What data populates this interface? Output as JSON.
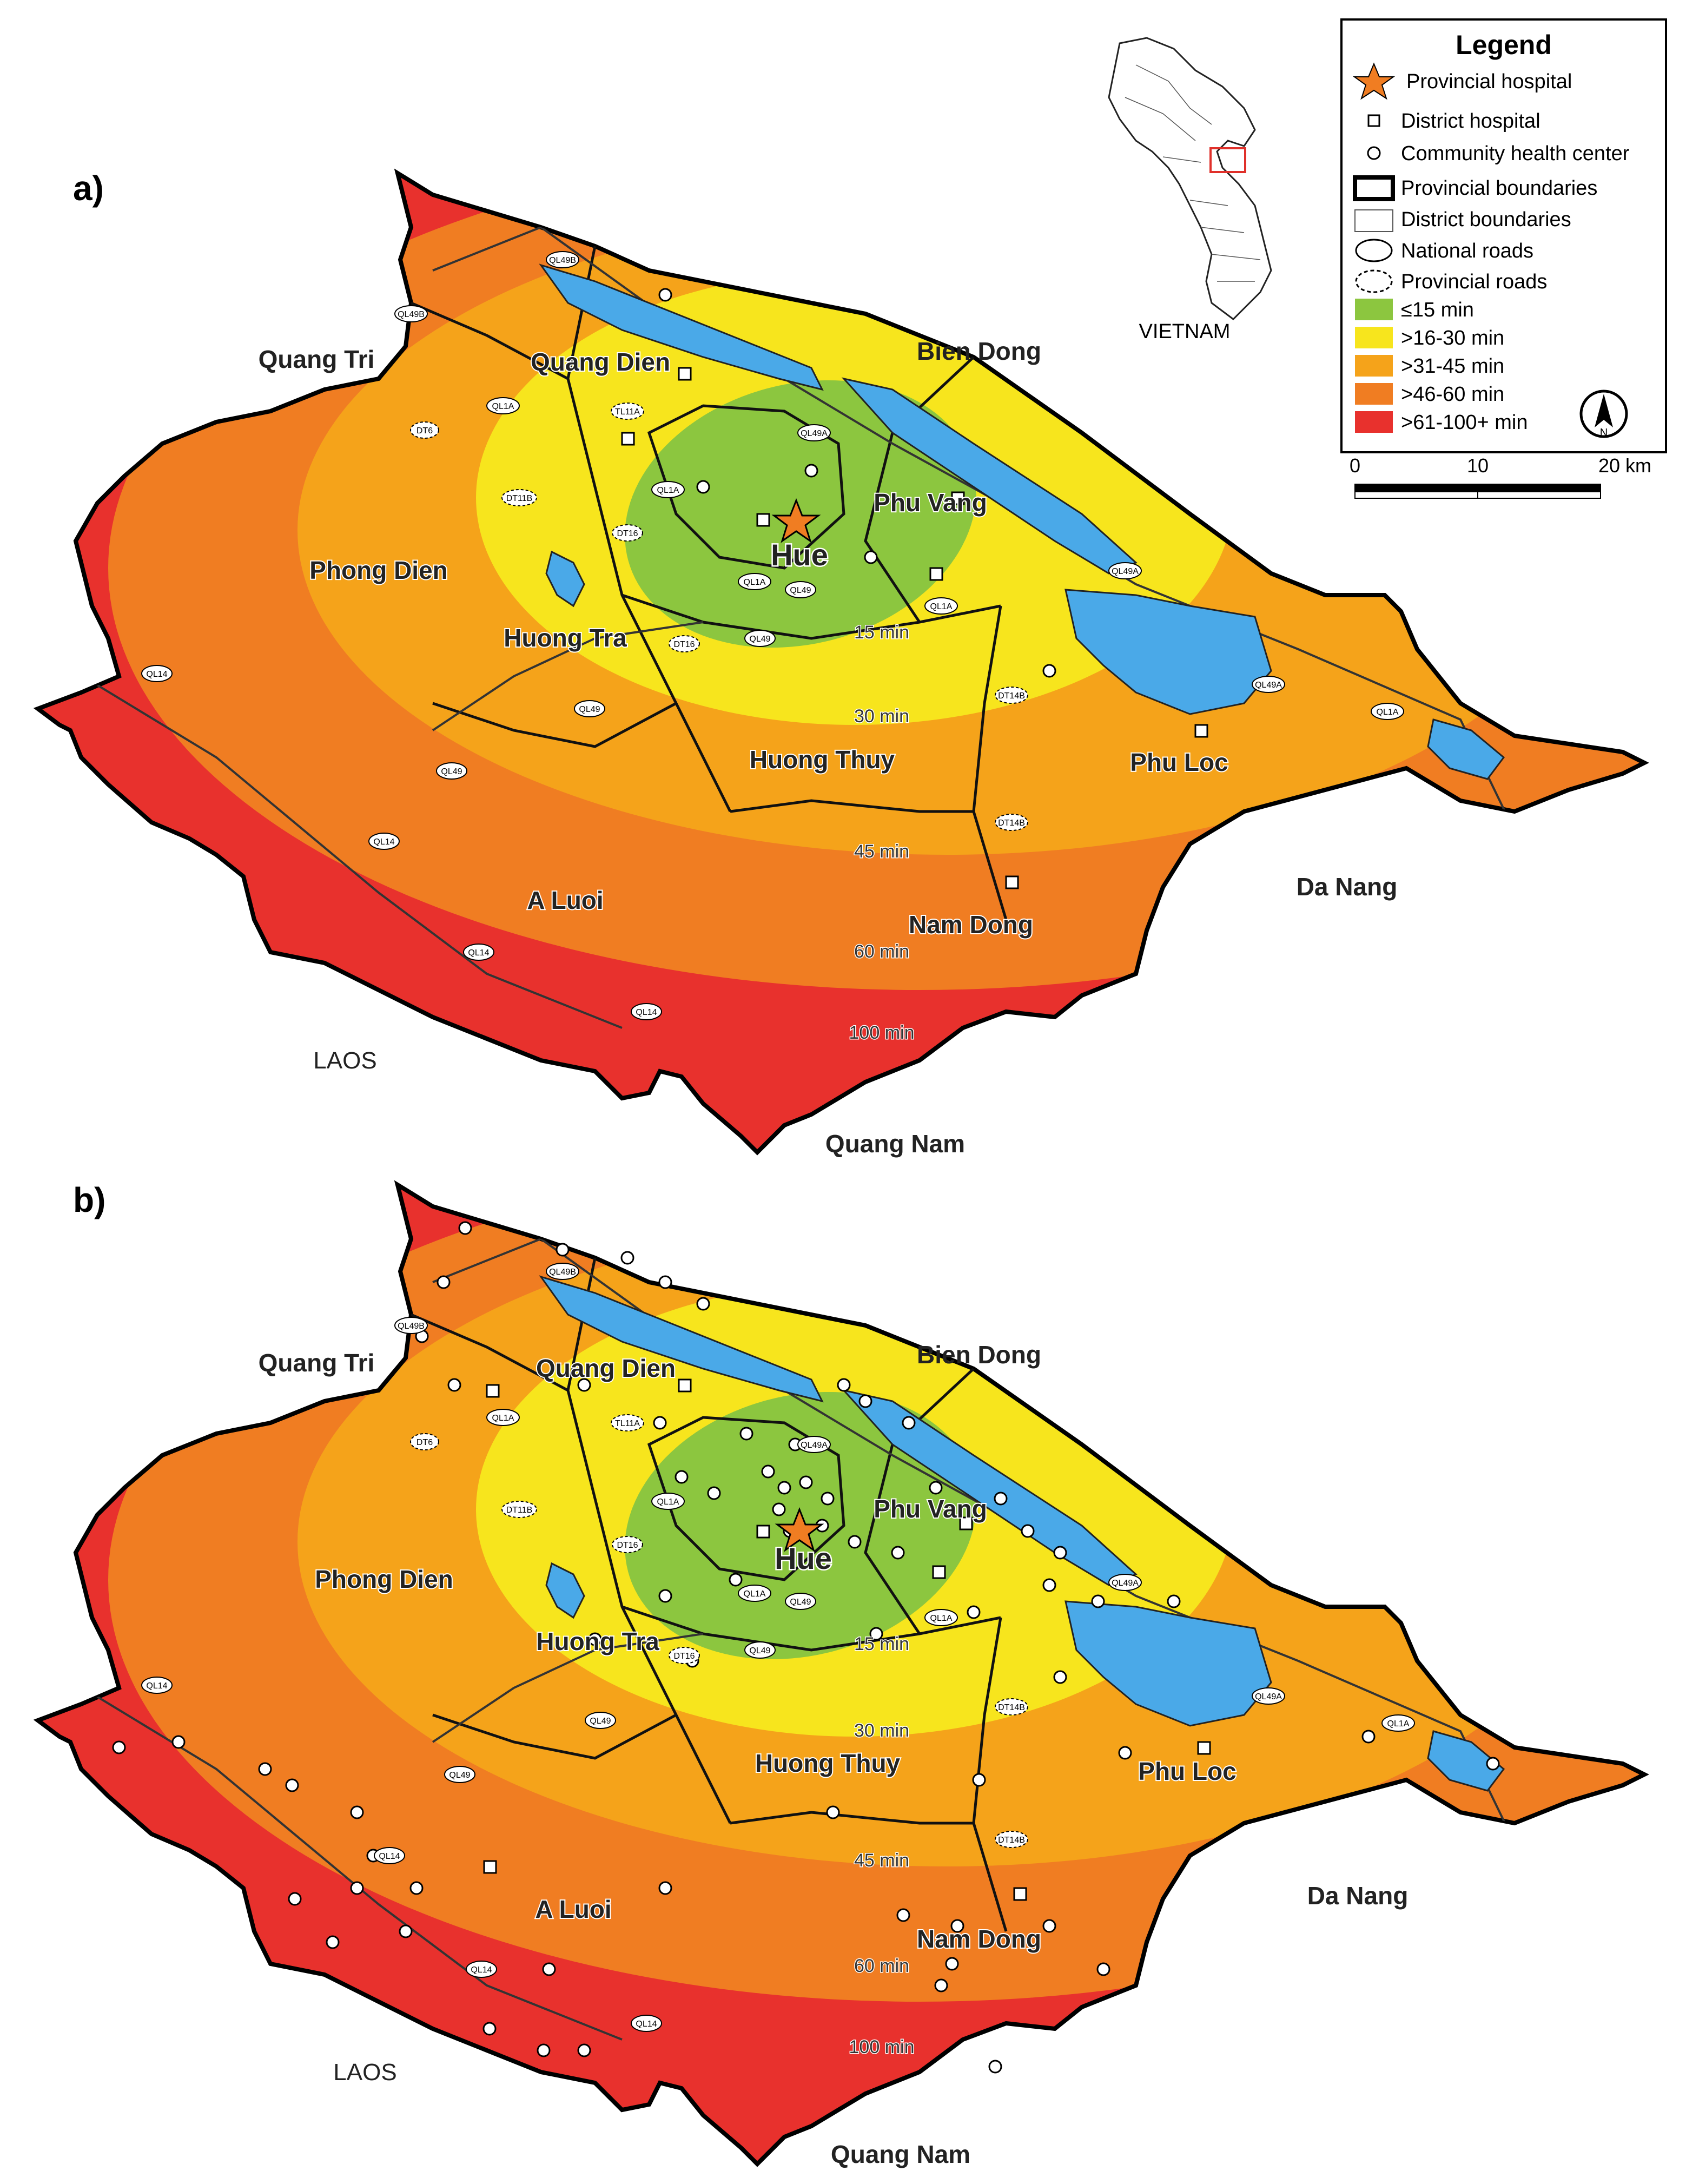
{
  "panels": [
    {
      "label": "a)",
      "labels": {
        "quang_tri": "Quang Tri",
        "quang_dien": "Quang Dien",
        "bien_dong": "Bien Dong",
        "phu_vang": "Phu Vang",
        "phong_dien": "Phong Dien",
        "hue": "Hue",
        "huong_tra": "Huong Tra",
        "huong_thuy": "Huong Thuy",
        "phu_loc": "Phu Loc",
        "a_luoi": "A Luoi",
        "nam_dong": "Nam Dong",
        "da_nang": "Da Nang",
        "laos": "LAOS",
        "quang_nam": "Quang Nam"
      },
      "contours": [
        "15 min",
        "30 min",
        "45 min",
        "60 min",
        "100 min"
      ]
    },
    {
      "label": "b)",
      "labels": {
        "quang_tri": "Quang Tri",
        "quang_dien": "Quang Dien",
        "bien_dong": "Bien Dong",
        "phu_vang": "Phu Vang",
        "phong_dien": "Phong Dien",
        "hue": "Hue",
        "huong_tra": "Huong Tra",
        "huong_thuy": "Huong Thuy",
        "phu_loc": "Phu Loc",
        "a_luoi": "A Luoi",
        "nam_dong": "Nam Dong",
        "da_nang": "Da Nang",
        "laos": "LAOS",
        "quang_nam": "Quang Nam"
      },
      "contours": [
        "15 min",
        "30 min",
        "45 min",
        "60 min",
        "100 min"
      ]
    }
  ],
  "road_labels": {
    "ql49a": "QL49A",
    "ql49b": "QL49B",
    "ql1a": "QL1A",
    "ql49": "QL49",
    "ql14": "QL14",
    "dt6": "DT6",
    "dt11b": "DT11B",
    "dt16": "DT16",
    "dt14b": "DT14B",
    "tl11a": "TL11A"
  },
  "legend": {
    "title": "Legend",
    "items": [
      {
        "label": "Provincial hospital",
        "symbol": "star"
      },
      {
        "label": "District hospital",
        "symbol": "square"
      },
      {
        "label": "Community health center",
        "symbol": "circle"
      },
      {
        "label": "Provincial boundaries",
        "symbol": "thick-rect"
      },
      {
        "label": "District boundaries",
        "symbol": "thin-rect"
      },
      {
        "label": "National roads",
        "symbol": "ellipse"
      },
      {
        "label": "Provincial roads",
        "symbol": "dashed-ellipse"
      },
      {
        "label": "≤15 min",
        "symbol": "swatch",
        "color": "#8cc63f"
      },
      {
        "label": ">16-30 min",
        "symbol": "swatch",
        "color": "#f7e51d"
      },
      {
        "label": ">31-45 min",
        "symbol": "swatch",
        "color": "#f5a31a"
      },
      {
        "label": ">46-60 min",
        "symbol": "swatch",
        "color": "#f07d22"
      },
      {
        "label": ">61-100+ min",
        "symbol": "swatch",
        "color": "#e8312d"
      }
    ],
    "north_arrow": "N",
    "scale": {
      "ticks": [
        "0",
        "10",
        "20 km"
      ]
    }
  },
  "inset": {
    "label": "VIETNAM"
  },
  "colors": {
    "c15": "#8cc63f",
    "c30": "#f7e51d",
    "c45": "#f5a31a",
    "c60": "#f07d22",
    "c100": "#e8312d",
    "water": "#4aa9e8"
  }
}
